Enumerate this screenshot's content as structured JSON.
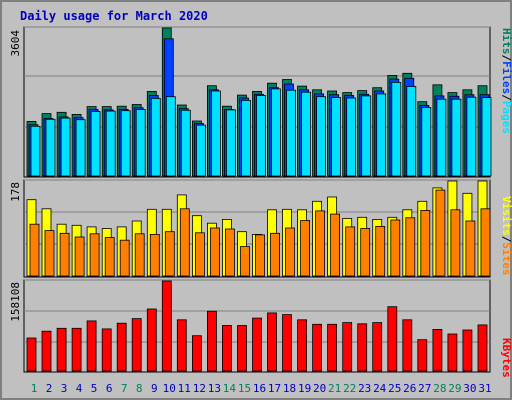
{
  "title": "Daily usage for March 2020",
  "colors": {
    "background": "#c0c0c0",
    "plot": "#c0c0c0",
    "title": "#0000c0",
    "hits": "#00805c",
    "files": "#0040ff",
    "pages": "#00e0ff",
    "visits": "#ffff00",
    "sites": "#ff8000",
    "kbytes": "#ff0000",
    "weekend_label": "#00805c",
    "weekday_label": "#0000c0"
  },
  "chart_data": [
    {
      "type": "bar",
      "panel": "top",
      "ylabel_max": "3604",
      "ylim": [
        0,
        3604
      ],
      "legend": [
        {
          "text": "Pages",
          "color": "#00e0ff"
        },
        {
          "text": "Files",
          "color": "#0040ff"
        },
        {
          "text": "Hits",
          "color": "#00805c"
        }
      ],
      "categories": [
        "1",
        "2",
        "3",
        "4",
        "5",
        "6",
        "7",
        "8",
        "9",
        "10",
        "11",
        "12",
        "13",
        "14",
        "15",
        "16",
        "17",
        "18",
        "19",
        "20",
        "21",
        "22",
        "23",
        "24",
        "25",
        "26",
        "27",
        "28",
        "29",
        "30",
        "31"
      ],
      "series": [
        {
          "name": "Hits",
          "values": [
            1330,
            1520,
            1550,
            1500,
            1690,
            1690,
            1700,
            1740,
            2060,
            3604,
            1730,
            1340,
            2200,
            1700,
            1970,
            2060,
            2260,
            2350,
            2190,
            2100,
            2070,
            2030,
            2080,
            2150,
            2450,
            2500,
            1810,
            2220,
            2030,
            2100,
            2200
          ]
        },
        {
          "name": "Files",
          "values": [
            1250,
            1400,
            1440,
            1420,
            1620,
            1610,
            1620,
            1660,
            1960,
            3340,
            1640,
            1280,
            2100,
            1620,
            1900,
            1990,
            2150,
            2240,
            2100,
            2000,
            1980,
            1960,
            1990,
            2070,
            2360,
            2380,
            1720,
            1950,
            1940,
            1980,
            1980
          ]
        },
        {
          "name": "Pages",
          "values": [
            1210,
            1380,
            1410,
            1370,
            1570,
            1580,
            1590,
            1620,
            1890,
            1930,
            1600,
            1240,
            2070,
            1610,
            1840,
            1960,
            2120,
            2090,
            2040,
            1930,
            1910,
            1900,
            1950,
            2000,
            2280,
            2180,
            1670,
            1870,
            1870,
            1920,
            1910
          ]
        }
      ]
    },
    {
      "type": "bar",
      "panel": "middle",
      "ylabel_max": "178",
      "ylim": [
        0,
        178
      ],
      "legend": [
        {
          "text": "Sites",
          "color": "#ff8000"
        },
        {
          "text": "Visits",
          "color": "#ffff00"
        }
      ],
      "categories": [
        "1",
        "2",
        "3",
        "4",
        "5",
        "6",
        "7",
        "8",
        "9",
        "10",
        "11",
        "12",
        "13",
        "14",
        "15",
        "16",
        "17",
        "18",
        "19",
        "20",
        "21",
        "22",
        "23",
        "24",
        "25",
        "26",
        "27",
        "28",
        "29",
        "30",
        "31"
      ],
      "series": [
        {
          "name": "Visits",
          "values": [
            143,
            126,
            97,
            95,
            92,
            89,
            92,
            103,
            125,
            125,
            152,
            113,
            99,
            106,
            83,
            78,
            124,
            125,
            124,
            140,
            148,
            108,
            110,
            106,
            110,
            124,
            140,
            165,
            178,
            155,
            178
          ]
        },
        {
          "name": "Sites",
          "values": [
            97,
            85,
            80,
            73,
            79,
            72,
            67,
            79,
            78,
            83,
            126,
            81,
            90,
            88,
            55,
            77,
            80,
            90,
            104,
            122,
            116,
            92,
            89,
            93,
            105,
            109,
            123,
            161,
            124,
            103,
            126
          ]
        }
      ]
    },
    {
      "type": "bar",
      "panel": "bottom",
      "ylabel_max": "158108",
      "ylim": [
        0,
        158108
      ],
      "legend": [
        {
          "text": "KBytes",
          "color": "#ff0000"
        }
      ],
      "categories": [
        "1",
        "2",
        "3",
        "4",
        "5",
        "6",
        "7",
        "8",
        "9",
        "10",
        "11",
        "12",
        "13",
        "14",
        "15",
        "16",
        "17",
        "18",
        "19",
        "20",
        "21",
        "22",
        "23",
        "24",
        "25",
        "26",
        "27",
        "28",
        "29",
        "30",
        "31"
      ],
      "series": [
        {
          "name": "KBytes",
          "values": [
            58000,
            70000,
            75000,
            75000,
            88000,
            74000,
            84000,
            92000,
            109000,
            158108,
            90000,
            62000,
            105000,
            80000,
            80000,
            93000,
            102000,
            99000,
            90000,
            82000,
            82000,
            85000,
            83000,
            85000,
            113000,
            90000,
            55000,
            73000,
            65000,
            72000,
            81000
          ]
        }
      ]
    }
  ],
  "x_labels": [
    "1",
    "2",
    "3",
    "4",
    "5",
    "6",
    "7",
    "8",
    "9",
    "10",
    "11",
    "12",
    "13",
    "14",
    "15",
    "16",
    "17",
    "18",
    "19",
    "20",
    "21",
    "22",
    "23",
    "24",
    "25",
    "26",
    "27",
    "28",
    "29",
    "30",
    "31"
  ],
  "weekend_days": [
    "1",
    "7",
    "8",
    "14",
    "15",
    "21",
    "22",
    "28",
    "29"
  ]
}
